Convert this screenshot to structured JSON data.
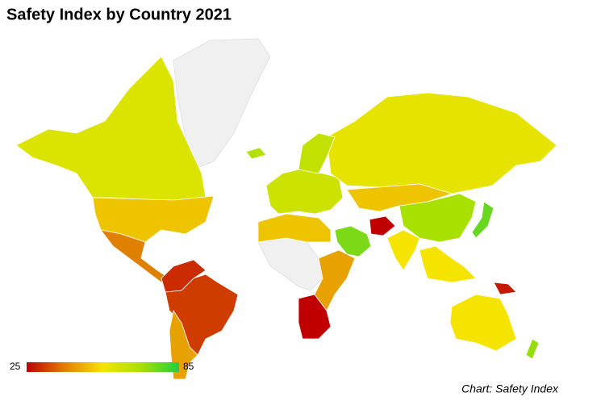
{
  "chart_data": {
    "type": "choropleth",
    "title": "Safety Index by Country 2021",
    "credit": "Chart: Safety Index",
    "values": [
      60,
      50,
      40,
      30,
      32,
      45,
      63,
      58,
      70,
      75,
      25,
      55,
      50,
      25,
      45,
      55,
      55,
      77,
      50,
      65,
      28,
      68,
      72
    ],
    "colorscale_range": [
      25,
      85
    ],
    "colorscale": [
      "#c00000",
      "#e08000",
      "#f5e400",
      "#a8e000",
      "#22cc44"
    ],
    "no_data_color": "#f0f0f0"
  }
}
